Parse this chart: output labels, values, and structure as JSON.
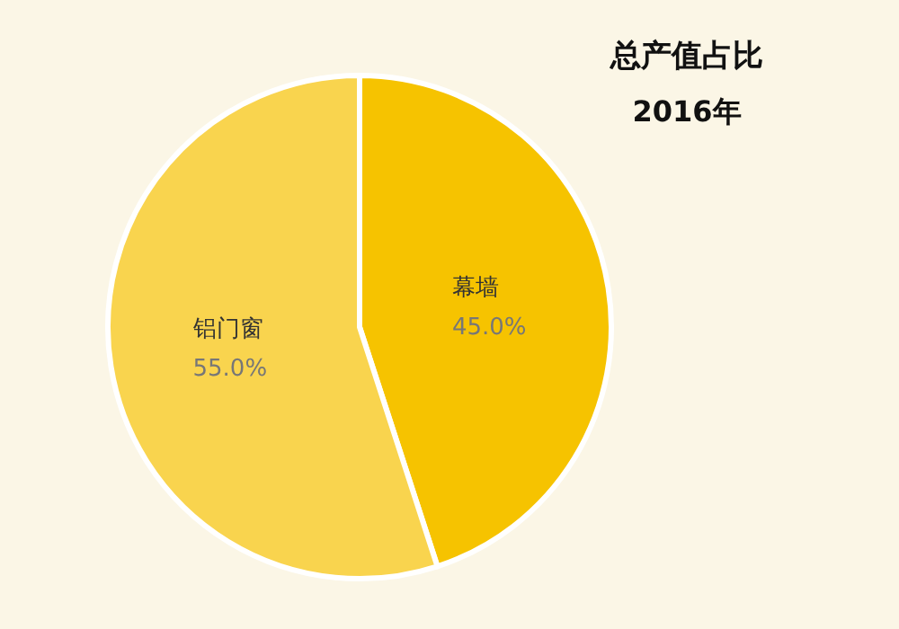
{
  "chart_data": {
    "type": "pie",
    "title": "总产值占比",
    "subtitle": "2016年",
    "categories": [
      "幕墙",
      "铝门窗"
    ],
    "values": [
      45.0,
      55.0
    ],
    "value_labels": [
      "45.0%",
      "55.0%"
    ],
    "colors": [
      "#f6c300",
      "#f9d44e"
    ],
    "legend": false
  }
}
